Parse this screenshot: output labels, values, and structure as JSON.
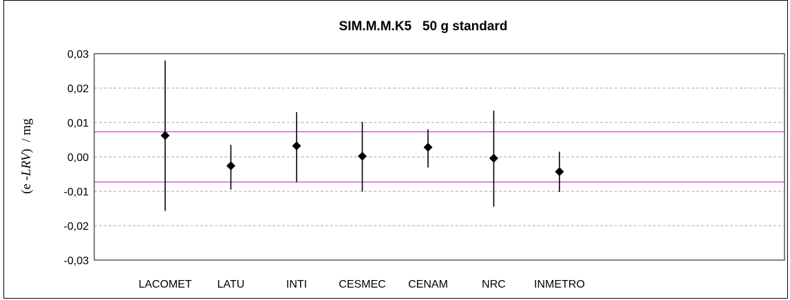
{
  "chart_data": {
    "type": "scatter",
    "title": "SIM.M.M.K5   50 g standard",
    "ylabel_prefix": "(e -",
    "ylabel_italic": "LRV",
    "ylabel_suffix": ")  / mg",
    "xlabel": "",
    "ylim": [
      -0.03,
      0.03
    ],
    "y_ticks": [
      0.03,
      0.02,
      0.01,
      0.0,
      -0.01,
      -0.02,
      -0.03
    ],
    "y_tick_labels": [
      "0,03",
      "0,02",
      "0,01",
      "0,00",
      "-0,01",
      "-0,02",
      "-0,03"
    ],
    "grid": "horizontal-dashed",
    "categories": [
      "LACOMET",
      "LATU",
      "INTI",
      "CESMEC",
      "CENAM",
      "NRC",
      "INMETRO"
    ],
    "values": [
      0.0062,
      -0.0026,
      0.0032,
      0.0002,
      0.0028,
      -0.0004,
      -0.0043
    ],
    "err_low": [
      -0.0157,
      -0.0095,
      -0.0073,
      -0.0101,
      -0.0031,
      -0.0145,
      -0.0102
    ],
    "err_high": [
      0.028,
      0.0035,
      0.013,
      0.0102,
      0.008,
      0.0135,
      0.0015
    ],
    "reference_lines": [
      0.0073,
      -0.0073
    ],
    "colors": {
      "marker": "#000000",
      "error_bar": "#000000",
      "reference_line": "#e34fe3",
      "grid": "#a6a6a6",
      "frame": "#000000"
    }
  }
}
